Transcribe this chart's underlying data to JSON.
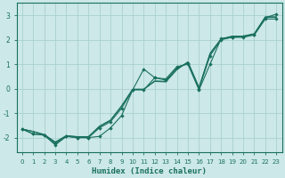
{
  "background_color": "#cce8e8",
  "grid_color": "#aad0d0",
  "line_color": "#1a7060",
  "xlabel": "Humidex (Indice chaleur)",
  "xlim": [
    -0.5,
    23.5
  ],
  "ylim": [
    -2.6,
    3.5
  ],
  "yticks": [
    -2,
    -1,
    0,
    1,
    2,
    3
  ],
  "xticks": [
    0,
    1,
    2,
    3,
    4,
    5,
    6,
    7,
    8,
    9,
    10,
    11,
    12,
    13,
    14,
    15,
    16,
    17,
    18,
    19,
    20,
    21,
    22,
    23
  ],
  "lines": [
    {
      "x": [
        0,
        1,
        2,
        3,
        4,
        5,
        6,
        7,
        8,
        9,
        10,
        11,
        12,
        13,
        14,
        15,
        16,
        17,
        18,
        19,
        20,
        21,
        22,
        23
      ],
      "y": [
        -1.65,
        -1.85,
        -1.9,
        -2.25,
        -1.95,
        -2.0,
        -2.0,
        -1.95,
        -1.6,
        -1.1,
        -0.05,
        0.8,
        0.45,
        0.4,
        0.9,
        1.0,
        -0.05,
        1.0,
        2.05,
        2.1,
        2.15,
        2.2,
        2.85,
        2.85
      ],
      "marker": true
    },
    {
      "x": [
        0,
        1,
        2,
        3,
        4,
        5,
        6,
        7,
        8,
        9,
        10,
        11,
        12,
        13,
        14,
        15,
        16,
        17,
        18,
        19,
        20,
        21,
        22,
        23
      ],
      "y": [
        -1.65,
        -1.85,
        -1.9,
        -2.3,
        -1.95,
        -2.0,
        -2.0,
        -1.6,
        -1.35,
        -0.8,
        -0.05,
        -0.05,
        0.45,
        0.35,
        0.85,
        1.05,
        0.0,
        1.35,
        2.0,
        2.1,
        2.1,
        2.2,
        2.9,
        3.05
      ],
      "marker": true
    },
    {
      "x": [
        0,
        1,
        2,
        3,
        4,
        5,
        6,
        7,
        8,
        9,
        10,
        11,
        12,
        13,
        14,
        15,
        16,
        17,
        18,
        19,
        20,
        21,
        22,
        23
      ],
      "y": [
        -1.65,
        -1.75,
        -1.9,
        -2.2,
        -1.93,
        -1.97,
        -1.97,
        -1.55,
        -1.3,
        -0.72,
        -0.03,
        -0.03,
        0.32,
        0.3,
        0.8,
        1.07,
        0.03,
        1.42,
        2.02,
        2.13,
        2.13,
        2.23,
        2.92,
        2.92
      ],
      "marker": false
    },
    {
      "x": [
        0,
        1,
        2,
        3,
        4,
        5,
        6,
        7,
        8,
        9,
        10,
        11,
        12,
        13,
        14,
        15,
        16,
        17,
        18,
        19,
        20,
        21,
        22,
        23
      ],
      "y": [
        -1.65,
        -1.75,
        -1.87,
        -2.18,
        -1.92,
        -1.96,
        -1.96,
        -1.53,
        -1.28,
        -0.7,
        -0.02,
        -0.02,
        0.3,
        0.28,
        0.78,
        1.1,
        0.05,
        1.45,
        2.04,
        2.15,
        2.15,
        2.25,
        2.94,
        2.94
      ],
      "marker": false
    }
  ]
}
